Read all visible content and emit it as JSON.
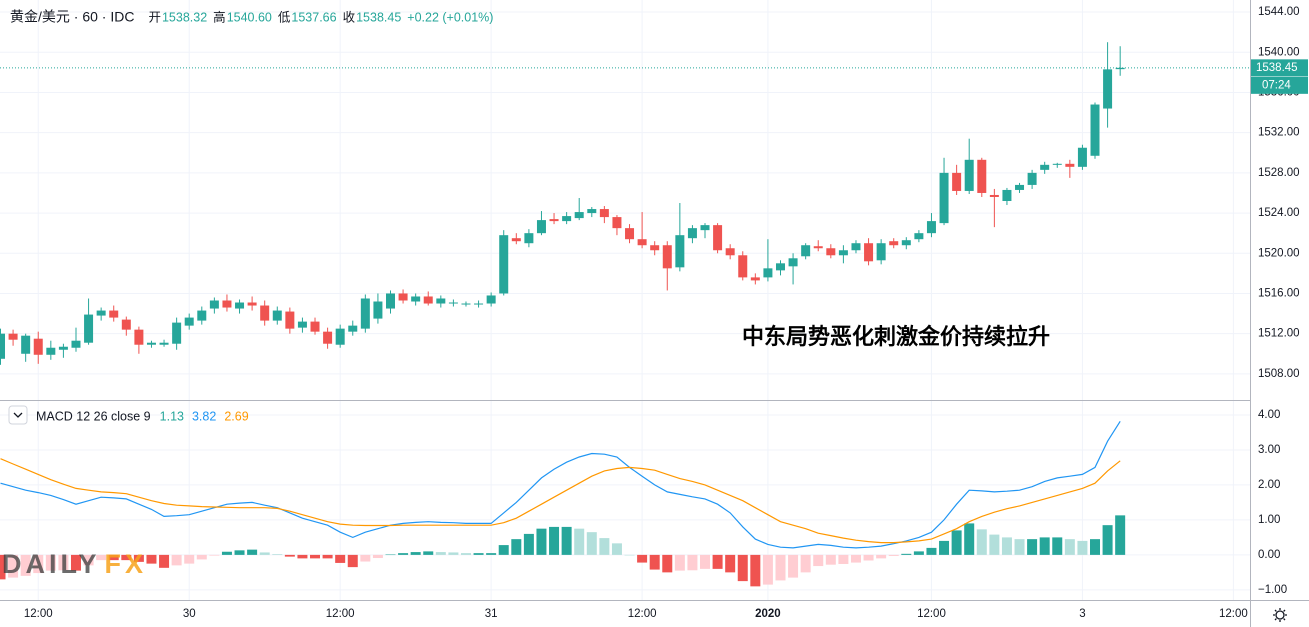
{
  "header": {
    "title": "黄金/美元 · 60 · IDC",
    "ohlc": [
      {
        "label": "开",
        "value": "1538.32"
      },
      {
        "label": "高",
        "value": "1540.60"
      },
      {
        "label": "低",
        "value": "1537.66"
      },
      {
        "label": "收",
        "value": "1538.45"
      }
    ],
    "change": "+0.22 (+0.01%)",
    "countdown": "07:24"
  },
  "annotation": "中东局势恶化刺激金价持续拉升",
  "watermark": [
    "DAILY",
    "FX"
  ],
  "chart_data": [
    {
      "type": "candlestick",
      "up_color": "#26a69a",
      "down_color": "#ef5350",
      "ylim": [
        1505.4,
        1545.2
      ],
      "xlim": [
        -0.04,
        99.32
      ],
      "yticks": [
        {
          "value": 1508,
          "label": "1508.00"
        },
        {
          "value": 1512,
          "label": "1512.00"
        },
        {
          "value": 1516,
          "label": "1516.00"
        },
        {
          "value": 1520,
          "label": "1520.00"
        },
        {
          "value": 1524,
          "label": "1524.00"
        },
        {
          "value": 1528,
          "label": "1528.00"
        },
        {
          "value": 1532,
          "label": "1532.00"
        },
        {
          "value": 1536,
          "label": "1536.00"
        },
        {
          "value": 1540,
          "label": "1540.00"
        },
        {
          "value": 1544,
          "label": "1544.00"
        }
      ],
      "grid": true,
      "open": [
        1509.5,
        1512.0,
        1510.0,
        1511.5,
        1509.9,
        1510.4,
        1510.6,
        1511.1,
        1513.8,
        1514.3,
        1513.4,
        1512.4,
        1510.9,
        1510.9,
        1511.0,
        1512.8,
        1513.3,
        1514.5,
        1515.3,
        1514.5,
        1515.1,
        1514.8,
        1513.3,
        1514.2,
        1512.6,
        1513.2,
        1512.2,
        1510.9,
        1512.2,
        1512.5,
        1513.5,
        1514.5,
        1516.0,
        1515.2,
        1515.7,
        1515.0,
        1515.0,
        1514.9,
        1514.9,
        1515.0,
        1516.0,
        1521.5,
        1521.0,
        1522.0,
        1523.4,
        1523.2,
        1523.5,
        1524.0,
        1524.4,
        1523.6,
        1522.5,
        1521.4,
        1520.8,
        1520.8,
        1518.6,
        1521.5,
        1522.3,
        1522.8,
        1520.5,
        1519.8,
        1517.6,
        1517.6,
        1518.3,
        1518.7,
        1519.7,
        1520.7,
        1520.5,
        1519.8,
        1520.3,
        1521.0,
        1519.3,
        1521.2,
        1520.8,
        1521.4,
        1522.0,
        1523.0,
        1528.0,
        1526.2,
        1529.3,
        1525.8,
        1525.2,
        1526.3,
        1526.8,
        1528.3,
        1528.8,
        1528.9,
        1528.6,
        1529.7,
        1534.4,
        1538.32
      ],
      "high": [
        1512.5,
        1512.4,
        1512.0,
        1512.2,
        1511.3,
        1511.0,
        1512.6,
        1515.5,
        1514.6,
        1514.8,
        1513.7,
        1512.7,
        1511.3,
        1511.4,
        1513.6,
        1514.0,
        1514.7,
        1515.6,
        1515.9,
        1515.4,
        1515.7,
        1515.3,
        1514.7,
        1514.6,
        1513.6,
        1513.6,
        1512.6,
        1512.9,
        1513.3,
        1515.9,
        1516.0,
        1516.3,
        1516.4,
        1516.0,
        1516.2,
        1515.8,
        1515.4,
        1515.2,
        1515.3,
        1516.1,
        1522.3,
        1522.0,
        1522.4,
        1524.2,
        1524.0,
        1524.1,
        1525.5,
        1524.6,
        1524.7,
        1523.8,
        1522.9,
        1524.1,
        1521.2,
        1521.2,
        1525.0,
        1522.8,
        1523.0,
        1523.0,
        1520.9,
        1520.2,
        1518.0,
        1521.4,
        1519.3,
        1520.0,
        1521.0,
        1521.3,
        1520.9,
        1520.8,
        1521.3,
        1521.5,
        1521.4,
        1521.5,
        1521.6,
        1522.3,
        1524.0,
        1529.5,
        1528.8,
        1531.4,
        1529.5,
        1526.4,
        1526.5,
        1527.0,
        1528.3,
        1529.1,
        1529.0,
        1529.3,
        1530.8,
        1535.0,
        1541.0,
        1540.6
      ],
      "low": [
        1508.9,
        1510.8,
        1509.2,
        1509.0,
        1509.4,
        1509.6,
        1510.2,
        1510.9,
        1513.3,
        1513.2,
        1511.8,
        1510.0,
        1510.6,
        1510.7,
        1510.4,
        1512.4,
        1512.9,
        1514.0,
        1514.2,
        1514.0,
        1514.3,
        1512.8,
        1512.9,
        1512.0,
        1512.1,
        1511.9,
        1510.5,
        1510.6,
        1511.8,
        1512.1,
        1513.0,
        1514.0,
        1515.0,
        1514.8,
        1514.8,
        1514.6,
        1514.7,
        1514.7,
        1514.6,
        1514.7,
        1515.8,
        1520.9,
        1520.6,
        1521.8,
        1522.9,
        1522.9,
        1523.3,
        1523.6,
        1523.0,
        1521.8,
        1521.0,
        1520.5,
        1519.8,
        1516.3,
        1518.2,
        1521.0,
        1521.5,
        1520.0,
        1519.4,
        1517.3,
        1516.9,
        1517.2,
        1517.8,
        1516.9,
        1519.4,
        1520.2,
        1519.5,
        1519.0,
        1520.0,
        1518.8,
        1518.9,
        1520.5,
        1520.4,
        1521.1,
        1521.6,
        1522.8,
        1525.8,
        1525.9,
        1525.6,
        1522.6,
        1524.8,
        1526.0,
        1526.4,
        1527.9,
        1528.5,
        1527.5,
        1528.3,
        1529.4,
        1532.5,
        1537.66
      ],
      "close": [
        1512.0,
        1511.4,
        1511.8,
        1509.9,
        1510.6,
        1510.7,
        1511.3,
        1513.9,
        1514.3,
        1513.6,
        1512.4,
        1510.9,
        1511.1,
        1511.1,
        1513.1,
        1513.6,
        1514.3,
        1515.3,
        1514.6,
        1515.1,
        1514.8,
        1513.3,
        1514.3,
        1512.5,
        1513.2,
        1512.2,
        1511.0,
        1512.5,
        1512.8,
        1515.5,
        1515.2,
        1516.0,
        1515.3,
        1515.7,
        1515.0,
        1515.5,
        1515.1,
        1515.0,
        1515.0,
        1515.8,
        1521.8,
        1521.2,
        1522.0,
        1523.3,
        1523.2,
        1523.7,
        1524.1,
        1524.4,
        1523.6,
        1522.5,
        1521.4,
        1520.8,
        1520.3,
        1518.5,
        1521.8,
        1522.5,
        1522.8,
        1520.3,
        1519.8,
        1517.6,
        1517.3,
        1518.5,
        1519.0,
        1519.5,
        1520.8,
        1520.5,
        1519.8,
        1520.3,
        1521.0,
        1519.2,
        1521.0,
        1520.8,
        1521.3,
        1522.0,
        1523.2,
        1528.0,
        1526.2,
        1529.3,
        1526.0,
        1525.6,
        1526.3,
        1526.8,
        1528.0,
        1528.8,
        1528.9,
        1528.6,
        1530.5,
        1534.8,
        1538.3,
        1538.45
      ]
    },
    {
      "type": "macd",
      "title": "MACD 12 26 close 9",
      "ylim": [
        -1.29,
        4.4
      ],
      "xlim": [
        -0.04,
        99.32
      ],
      "yticks": [
        {
          "value": -1,
          "label": "−1.00"
        },
        {
          "value": 0,
          "label": "0.00"
        },
        {
          "value": 1,
          "label": "1.00"
        },
        {
          "value": 2,
          "label": "2.00"
        },
        {
          "value": 3,
          "label": "3.00"
        },
        {
          "value": 4,
          "label": "4.00"
        }
      ],
      "xticks": [
        {
          "value": 3,
          "label": "12:00"
        },
        {
          "value": 15,
          "label": "30"
        },
        {
          "value": 27,
          "label": "12:00"
        },
        {
          "value": 39,
          "label": "31"
        },
        {
          "value": 51,
          "label": "12:00"
        },
        {
          "value": 61,
          "label": "2020"
        },
        {
          "value": 74,
          "label": "12:00"
        },
        {
          "value": 86,
          "label": "3"
        },
        {
          "value": 98,
          "label": "12:00"
        }
      ],
      "grid": true,
      "series": [
        {
          "style": "histogram",
          "colors": [
            "#26a69a",
            "#b2dfdb",
            "#ef5350",
            "#ffcdd2"
          ],
          "values": [
            -0.7,
            -0.65,
            -0.6,
            -0.52,
            -0.45,
            -0.44,
            -0.45,
            -0.3,
            -0.15,
            -0.15,
            -0.15,
            -0.2,
            -0.25,
            -0.37,
            -0.3,
            -0.25,
            -0.13,
            -0.02,
            0.09,
            0.13,
            0.15,
            0.07,
            0.02,
            -0.05,
            -0.1,
            -0.1,
            -0.1,
            -0.23,
            -0.35,
            -0.19,
            -0.09,
            0.01,
            0.05,
            0.08,
            0.1,
            0.08,
            0.07,
            0.05,
            0.05,
            0.05,
            0.28,
            0.45,
            0.6,
            0.75,
            0.8,
            0.8,
            0.75,
            0.65,
            0.48,
            0.33,
            0.0,
            -0.22,
            -0.42,
            -0.5,
            -0.45,
            -0.44,
            -0.4,
            -0.4,
            -0.5,
            -0.75,
            -0.9,
            -0.85,
            -0.73,
            -0.65,
            -0.5,
            -0.32,
            -0.28,
            -0.26,
            -0.22,
            -0.16,
            -0.1,
            -0.03,
            0.03,
            0.1,
            0.2,
            0.4,
            0.7,
            0.9,
            0.73,
            0.58,
            0.5,
            0.45,
            0.45,
            0.5,
            0.5,
            0.45,
            0.4,
            0.45,
            0.85,
            1.13
          ]
        },
        {
          "style": "line",
          "color": "#2196f3",
          "values": [
            2.05,
            1.95,
            1.85,
            1.78,
            1.7,
            1.58,
            1.45,
            1.55,
            1.65,
            1.63,
            1.6,
            1.45,
            1.3,
            1.1,
            1.12,
            1.15,
            1.25,
            1.35,
            1.45,
            1.48,
            1.5,
            1.42,
            1.35,
            1.2,
            1.05,
            0.95,
            0.85,
            0.65,
            0.5,
            0.65,
            0.75,
            0.85,
            0.9,
            0.93,
            0.95,
            0.93,
            0.92,
            0.9,
            0.9,
            0.9,
            1.2,
            1.5,
            1.85,
            2.2,
            2.45,
            2.65,
            2.8,
            2.9,
            2.88,
            2.8,
            2.5,
            2.25,
            2.0,
            1.8,
            1.73,
            1.66,
            1.6,
            1.45,
            1.2,
            0.8,
            0.45,
            0.3,
            0.22,
            0.2,
            0.25,
            0.3,
            0.27,
            0.22,
            0.2,
            0.22,
            0.25,
            0.32,
            0.4,
            0.5,
            0.65,
            1.0,
            1.45,
            1.85,
            1.83,
            1.8,
            1.82,
            1.85,
            1.95,
            2.1,
            2.2,
            2.25,
            2.3,
            2.5,
            3.25,
            3.82
          ]
        },
        {
          "style": "line",
          "color": "#ff9800",
          "values": [
            2.75,
            2.6,
            2.45,
            2.3,
            2.15,
            2.02,
            1.9,
            1.85,
            1.8,
            1.78,
            1.75,
            1.65,
            1.55,
            1.47,
            1.42,
            1.4,
            1.38,
            1.37,
            1.36,
            1.35,
            1.35,
            1.35,
            1.33,
            1.25,
            1.15,
            1.05,
            0.95,
            0.88,
            0.85,
            0.84,
            0.84,
            0.84,
            0.85,
            0.85,
            0.85,
            0.85,
            0.85,
            0.85,
            0.85,
            0.85,
            0.92,
            1.05,
            1.25,
            1.45,
            1.65,
            1.85,
            2.05,
            2.25,
            2.4,
            2.47,
            2.5,
            2.47,
            2.42,
            2.3,
            2.18,
            2.1,
            2.0,
            1.85,
            1.7,
            1.55,
            1.35,
            1.15,
            0.95,
            0.85,
            0.75,
            0.62,
            0.55,
            0.48,
            0.42,
            0.38,
            0.35,
            0.35,
            0.37,
            0.4,
            0.45,
            0.6,
            0.75,
            0.95,
            1.1,
            1.22,
            1.32,
            1.4,
            1.5,
            1.6,
            1.7,
            1.8,
            1.9,
            2.05,
            2.4,
            2.69
          ]
        }
      ]
    }
  ]
}
